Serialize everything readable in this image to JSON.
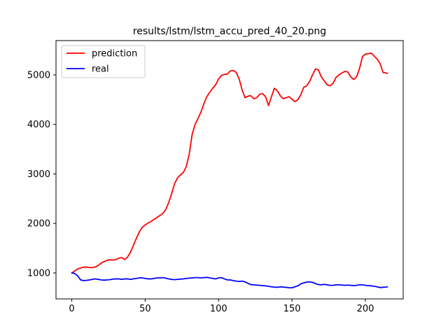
{
  "chart_data": {
    "type": "line",
    "title": "results/lstm/lstm_accu_pred_40_20.png",
    "xlabel": "",
    "ylabel": "",
    "xlim": [
      -10.75,
      225.75
    ],
    "ylim": [
      476,
      5693
    ],
    "xticks": [
      0,
      50,
      100,
      150,
      200
    ],
    "yticks": [
      1000,
      2000,
      3000,
      4000,
      5000
    ],
    "grid": false,
    "legend": "top-left",
    "series": [
      {
        "name": "prediction",
        "color": "#ff0000",
        "x": [
          0,
          2,
          4,
          6,
          8,
          10,
          12,
          14,
          16,
          18,
          20,
          22,
          24,
          26,
          28,
          30,
          32,
          34,
          36,
          38,
          40,
          42,
          44,
          46,
          48,
          50,
          52,
          54,
          56,
          58,
          60,
          62,
          64,
          66,
          68,
          70,
          72,
          74,
          76,
          78,
          80,
          82,
          84,
          86,
          88,
          90,
          92,
          94,
          96,
          98,
          100,
          102,
          104,
          106,
          108,
          110,
          112,
          114,
          116,
          118,
          120,
          122,
          124,
          126,
          128,
          130,
          132,
          134,
          136,
          138,
          140,
          142,
          144,
          146,
          148,
          150,
          152,
          154,
          156,
          158,
          160,
          162,
          164,
          166,
          168,
          170,
          172,
          174,
          176,
          178,
          180,
          182,
          184,
          186,
          188,
          190,
          192,
          194,
          196,
          198,
          200,
          202,
          204,
          206,
          208,
          210,
          212,
          214,
          215
        ],
        "y": [
          1000,
          1040,
          1080,
          1100,
          1115,
          1120,
          1110,
          1108,
          1120,
          1150,
          1200,
          1230,
          1255,
          1265,
          1260,
          1270,
          1300,
          1310,
          1270,
          1320,
          1420,
          1560,
          1700,
          1830,
          1920,
          1970,
          2010,
          2040,
          2080,
          2120,
          2160,
          2200,
          2280,
          2420,
          2600,
          2800,
          2920,
          2980,
          3030,
          3150,
          3400,
          3800,
          4000,
          4120,
          4250,
          4420,
          4560,
          4650,
          4730,
          4800,
          4920,
          4990,
          5010,
          5020,
          5080,
          5090,
          5050,
          4920,
          4700,
          4540,
          4570,
          4580,
          4520,
          4540,
          4610,
          4620,
          4560,
          4380,
          4560,
          4730,
          4680,
          4580,
          4520,
          4540,
          4560,
          4510,
          4460,
          4500,
          4600,
          4750,
          4780,
          4870,
          5000,
          5120,
          5100,
          4960,
          4880,
          4800,
          4780,
          4830,
          4950,
          5000,
          5040,
          5070,
          5060,
          4960,
          4910,
          4960,
          5130,
          5370,
          5420,
          5430,
          5440,
          5380,
          5320,
          5230,
          5050,
          5040,
          5030
        ]
      },
      {
        "name": "real",
        "color": "#0000ff",
        "x": [
          0,
          2,
          4,
          6,
          8,
          10,
          12,
          14,
          16,
          18,
          20,
          22,
          24,
          26,
          28,
          30,
          32,
          34,
          36,
          38,
          40,
          42,
          44,
          46,
          48,
          50,
          52,
          54,
          56,
          58,
          60,
          62,
          64,
          66,
          68,
          70,
          72,
          74,
          76,
          78,
          80,
          82,
          84,
          86,
          88,
          90,
          92,
          94,
          96,
          98,
          100,
          102,
          104,
          106,
          108,
          110,
          112,
          114,
          116,
          118,
          120,
          122,
          124,
          126,
          128,
          130,
          132,
          134,
          136,
          138,
          140,
          142,
          144,
          146,
          148,
          150,
          152,
          154,
          156,
          158,
          160,
          162,
          164,
          166,
          168,
          170,
          172,
          174,
          176,
          178,
          180,
          182,
          184,
          186,
          188,
          190,
          192,
          194,
          196,
          198,
          200,
          202,
          204,
          206,
          208,
          210,
          212,
          214,
          215
        ],
        "y": [
          1000,
          990,
          940,
          860,
          845,
          850,
          860,
          870,
          880,
          870,
          860,
          855,
          860,
          865,
          875,
          880,
          880,
          870,
          880,
          880,
          870,
          880,
          890,
          900,
          900,
          890,
          880,
          880,
          890,
          900,
          900,
          905,
          895,
          880,
          870,
          865,
          870,
          875,
          880,
          890,
          895,
          900,
          905,
          905,
          900,
          905,
          910,
          900,
          890,
          880,
          900,
          905,
          880,
          860,
          860,
          845,
          835,
          830,
          835,
          820,
          790,
          765,
          760,
          755,
          750,
          745,
          740,
          730,
          720,
          715,
          710,
          720,
          715,
          710,
          700,
          700,
          720,
          740,
          780,
          800,
          815,
          820,
          810,
          785,
          765,
          760,
          770,
          760,
          750,
          750,
          760,
          760,
          755,
          750,
          755,
          750,
          745,
          750,
          760,
          760,
          750,
          745,
          740,
          730,
          720,
          705,
          710,
          715,
          720
        ]
      }
    ]
  }
}
